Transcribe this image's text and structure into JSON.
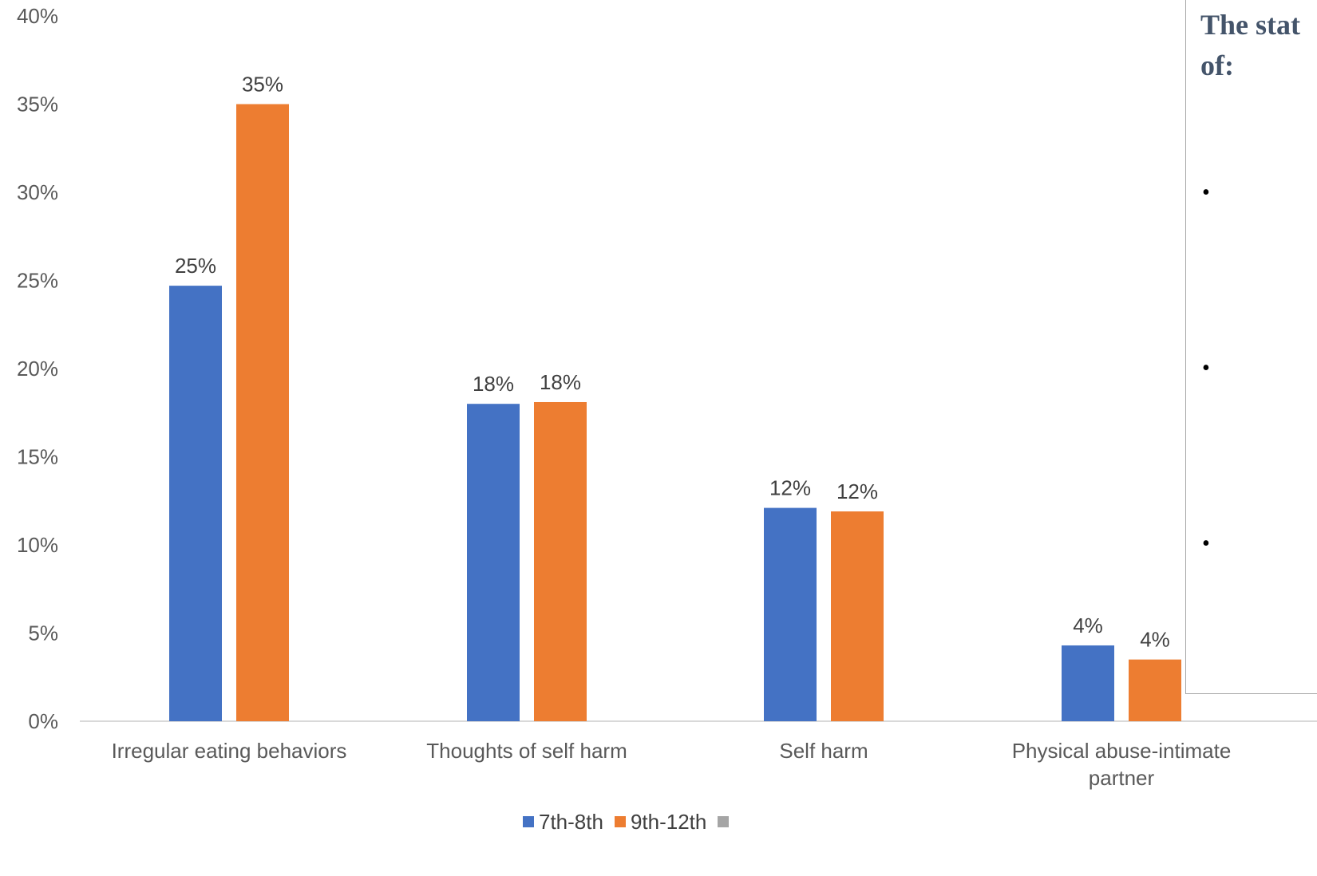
{
  "chart_data": {
    "type": "bar",
    "categories": [
      "Irregular eating behaviors",
      "Thoughts of self harm",
      "Self harm",
      "Physical abuse-intimate partner"
    ],
    "series": [
      {
        "name": "7th-8th",
        "values": [
          24.7,
          18.0,
          12.1,
          4.3
        ],
        "labels": [
          "25%",
          "18%",
          "12%",
          "4%"
        ],
        "color": "#4472c4"
      },
      {
        "name": "9th-12th",
        "values": [
          35.0,
          18.1,
          11.9,
          3.5
        ],
        "labels": [
          "35%",
          "18%",
          "12%",
          "4%"
        ],
        "color": "#ed7d31"
      }
    ],
    "y_ticks": [
      "0%",
      "5%",
      "10%",
      "15%",
      "20%",
      "25%",
      "30%",
      "35%",
      "40%"
    ],
    "ylim": [
      0,
      40
    ],
    "grid": false,
    "legend": {
      "position": "bottom",
      "extra_swatch_color": "#a5a5a5"
    },
    "title": "",
    "xlabel": "",
    "ylabel": ""
  },
  "callout": {
    "heading": "The stat of:",
    "bullets": [
      "•",
      "•",
      "•"
    ]
  }
}
